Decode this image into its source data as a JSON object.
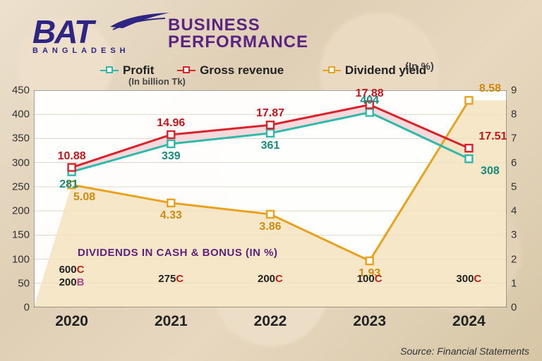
{
  "logo": {
    "brand": "BAT",
    "sub": "BANGLADESH",
    "color": "#2e2585"
  },
  "title": {
    "line1": "BUSINESS",
    "line2": "PERFORMANCE",
    "color": "#5a2482"
  },
  "legend": {
    "profit": {
      "label": "Profit",
      "color": "#2fb9a9"
    },
    "revenue": {
      "label": "Gross revenue",
      "color": "#d8232a"
    },
    "yield": {
      "label": "Dividend yield",
      "color": "#e8a21e"
    },
    "unit_left": "(In billion Tk)",
    "unit_right": "(In %)"
  },
  "chart": {
    "type": "line-dual-axis",
    "years": [
      "2020",
      "2021",
      "2022",
      "2023",
      "2024"
    ],
    "left_axis": {
      "min": 0,
      "max": 450,
      "step": 50,
      "ticks": [
        0,
        50,
        100,
        150,
        200,
        250,
        300,
        350,
        400,
        450
      ]
    },
    "right_axis": {
      "min": 0,
      "max": 9,
      "step": 1,
      "ticks": [
        0,
        1,
        2,
        3,
        4,
        5,
        6,
        7,
        8,
        9
      ]
    },
    "series": {
      "profit": {
        "axis": "left",
        "color": "#2fb9a9",
        "values": [
          281,
          339,
          361,
          404,
          308
        ],
        "label_color": "#1a8a7c"
      },
      "revenue": {
        "axis": "left",
        "color": "#d8232a",
        "values": [
          10.88,
          14.96,
          17.87,
          17.88,
          17.51
        ],
        "plot_values": [
          290,
          358,
          378,
          420,
          330
        ],
        "label_color": "#c3161c"
      },
      "yield": {
        "axis": "right",
        "color": "#e8a21e",
        "values": [
          5.08,
          4.33,
          3.86,
          1.93,
          8.58
        ],
        "label_color": "#cf8b10"
      }
    },
    "plot_bg": "#ffffff",
    "grid_color": "#c9c0b0",
    "marker": "square",
    "x_positions_pct": [
      8,
      29,
      50,
      71,
      92
    ]
  },
  "dividends": {
    "title": "DIVIDENDS IN CASH & BONUS (IN %)",
    "title_color": "#601f7a",
    "rows": [
      [
        {
          "v": "600",
          "t": "C"
        },
        {
          "v": "200",
          "t": "B"
        }
      ],
      [
        {
          "v": "275",
          "t": "C"
        }
      ],
      [
        {
          "v": "200",
          "t": "C"
        }
      ],
      [
        {
          "v": "100",
          "t": "C"
        }
      ],
      [
        {
          "v": "300",
          "t": "C"
        }
      ]
    ],
    "c_color": "#c02418",
    "b_color": "#b04a8a"
  },
  "source": "Source: Financial Statements"
}
